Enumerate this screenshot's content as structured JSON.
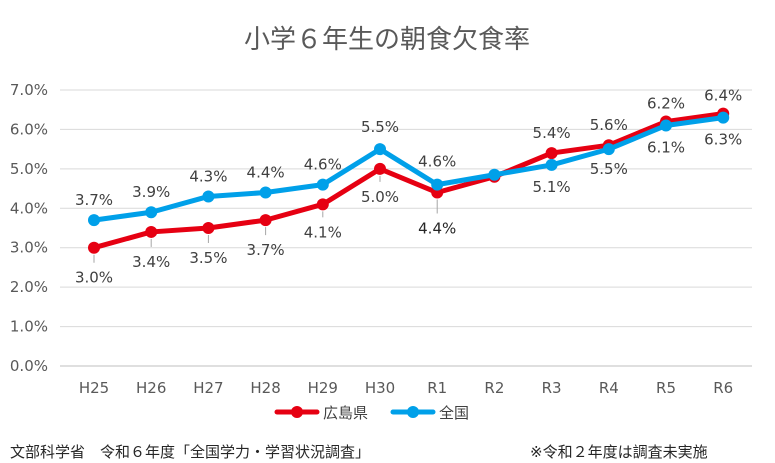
{
  "chart_data": {
    "type": "line",
    "title": "小学６年生の朝食欠食率",
    "categories": [
      "H25",
      "H26",
      "H27",
      "H28",
      "H29",
      "H30",
      "R1",
      "R2",
      "R3",
      "R4",
      "R5",
      "R6"
    ],
    "y_ticks": [
      "0.0%",
      "1.0%",
      "2.0%",
      "3.0%",
      "4.0%",
      "5.0%",
      "6.0%",
      "7.0%"
    ],
    "ylim": [
      0,
      7
    ],
    "grid": true,
    "legend_position": "bottom",
    "series": [
      {
        "name": "広島県",
        "color": "#e60012",
        "values": [
          3.0,
          3.4,
          3.5,
          3.7,
          4.1,
          5.0,
          4.4,
          4.8,
          5.4,
          5.6,
          6.2,
          6.4
        ],
        "labels": [
          "3.0%",
          "3.4%",
          "3.5%",
          "3.7%",
          "4.1%",
          "5.0%",
          "4.4%",
          "",
          "5.4%",
          "5.6%",
          "6.2%",
          "6.4%"
        ]
      },
      {
        "name": "全国",
        "color": "#00a0e9",
        "values": [
          3.7,
          3.9,
          4.3,
          4.4,
          4.6,
          5.5,
          4.6,
          4.85,
          5.1,
          5.5,
          6.1,
          6.3
        ],
        "labels": [
          "3.7%",
          "3.9%",
          "4.3%",
          "4.4%",
          "4.6%",
          "5.5%",
          "4.6%",
          "",
          "5.1%",
          "5.5%",
          "6.1%",
          "6.3%"
        ]
      }
    ]
  },
  "footer": {
    "source": "文部科学省　令和６年度「全国学力・学習状況調査」",
    "note": "※令和２年度は調査未実施"
  }
}
